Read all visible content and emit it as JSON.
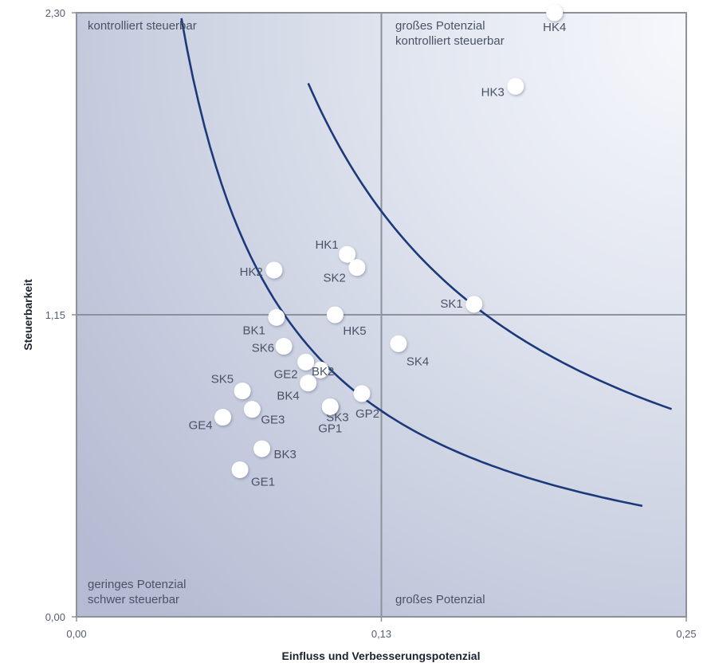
{
  "chart_data": {
    "type": "scatter",
    "title": "",
    "xlabel": "Einfluss und Verbesserungspotenzial",
    "ylabel": "Steuerbarkeit",
    "xlim": [
      0,
      0.25
    ],
    "ylim": [
      0,
      2.3
    ],
    "x_ticks": [
      "0,00",
      "0,13",
      "0,25"
    ],
    "y_ticks": [
      "0,00",
      "1,15",
      "2,30"
    ],
    "x_divider": 0.125,
    "y_divider": 1.15,
    "grid": false,
    "quadrant_labels": {
      "top_left": [
        "kontrolliert  steuerbar"
      ],
      "top_right": [
        "großes Potenzial",
        "kontrolliert steuerbar"
      ],
      "bottom_left": [
        "geringes Potenzial",
        "schwer steuerbar"
      ],
      "bottom_right": [
        "großes Potenzial"
      ]
    },
    "curves": [
      {
        "k": 0.098,
        "x_start": 0.043,
        "x_end": 0.232
      },
      {
        "k": 0.193,
        "x_start": 0.095,
        "x_end": 0.244
      }
    ],
    "points": [
      {
        "label": "HK4",
        "x": 0.196,
        "y": 2.3
      },
      {
        "label": "HK3",
        "x": 0.18,
        "y": 2.02
      },
      {
        "label": "SK1",
        "x": 0.163,
        "y": 1.19
      },
      {
        "label": "SK4",
        "x": 0.132,
        "y": 1.04
      },
      {
        "label": "HK1",
        "x": 0.111,
        "y": 1.38
      },
      {
        "label": "SK2",
        "x": 0.115,
        "y": 1.33
      },
      {
        "label": "HK2",
        "x": 0.081,
        "y": 1.32
      },
      {
        "label": "HK5",
        "x": 0.106,
        "y": 1.15
      },
      {
        "label": "BK1",
        "x": 0.082,
        "y": 1.14
      },
      {
        "label": "SK6",
        "x": 0.085,
        "y": 1.03
      },
      {
        "label": "BK2",
        "x": 0.1,
        "y": 0.94
      },
      {
        "label": "GE2",
        "x": 0.094,
        "y": 0.97
      },
      {
        "label": "BK4",
        "x": 0.095,
        "y": 0.89
      },
      {
        "label": "SK3",
        "x": 0.104,
        "y": 0.8
      },
      {
        "label": "GP2",
        "x": 0.117,
        "y": 0.85
      },
      {
        "label": "GP1",
        "x": 0.104,
        "y": 0.8
      },
      {
        "label": "SK5",
        "x": 0.068,
        "y": 0.86
      },
      {
        "label": "GE3",
        "x": 0.072,
        "y": 0.79
      },
      {
        "label": "GE4",
        "x": 0.06,
        "y": 0.76
      },
      {
        "label": "BK3",
        "x": 0.076,
        "y": 0.64
      },
      {
        "label": "GE1",
        "x": 0.067,
        "y": 0.56
      }
    ]
  }
}
